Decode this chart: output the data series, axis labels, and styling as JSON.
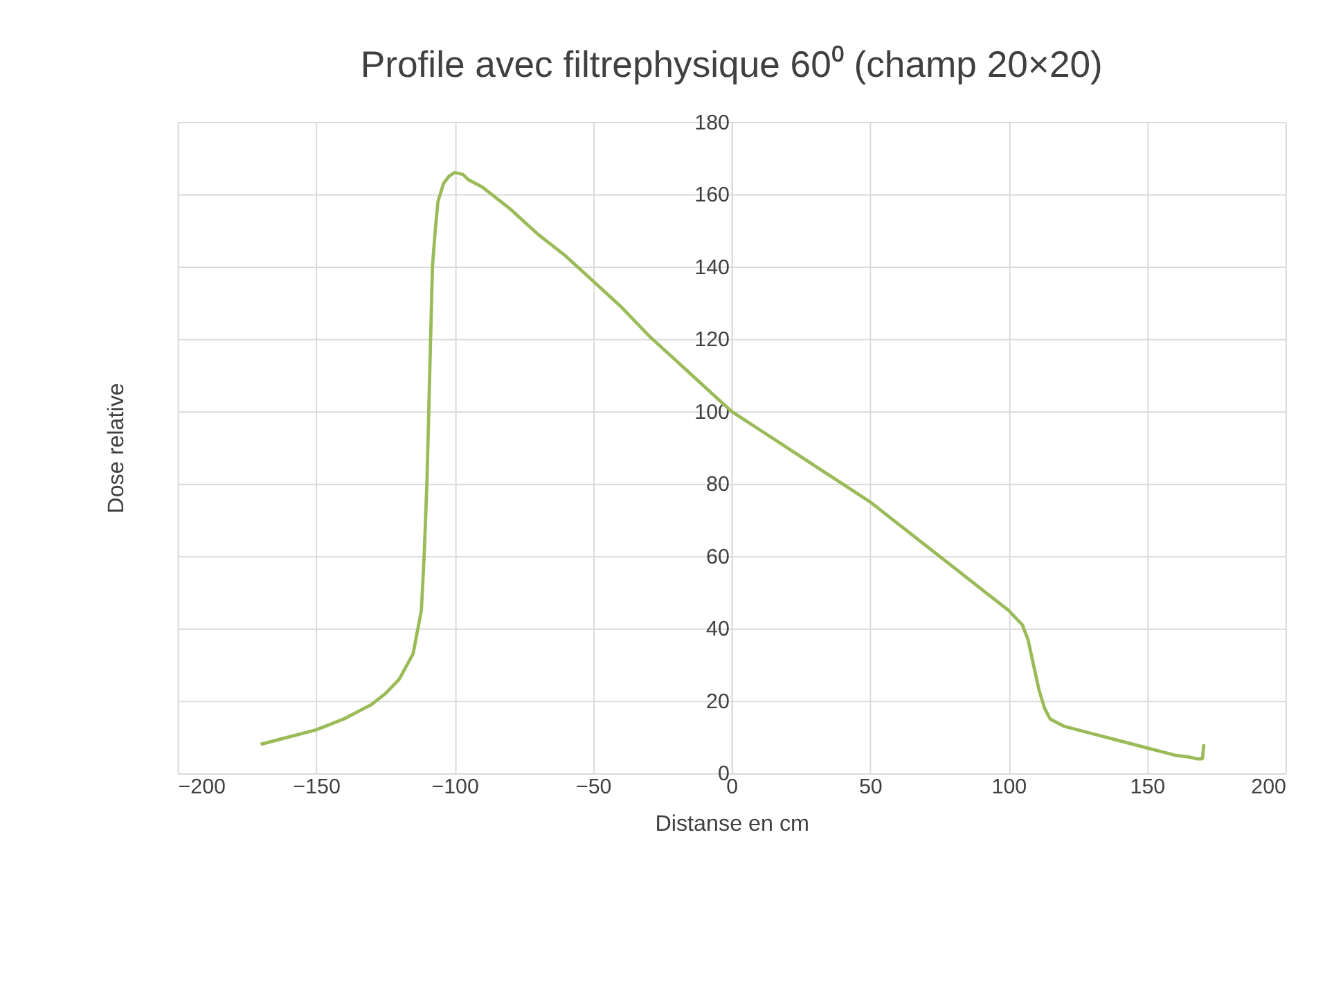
{
  "chart_data": {
    "type": "line",
    "title": "Profile avec filtrephysique 60⁰ (champ 20×20)",
    "xlabel": "Distanse en cm",
    "ylabel": "Dose relative",
    "x": [
      -170,
      -165,
      -160,
      -150,
      -140,
      -130,
      -125,
      -120,
      -115,
      -112,
      -111,
      -110,
      -109,
      -108,
      -107,
      -106,
      -104,
      -102,
      -100,
      -97,
      -95,
      -90,
      -80,
      -70,
      -60,
      -50,
      -40,
      -30,
      -20,
      -10,
      0,
      10,
      20,
      30,
      40,
      50,
      60,
      70,
      80,
      90,
      100,
      105,
      107,
      109,
      111,
      113,
      115,
      120,
      130,
      140,
      150,
      155,
      160,
      165,
      168,
      170,
      170.5
    ],
    "series": [
      {
        "color": "#9bbb59",
        "values": [
          8,
          9,
          10,
          12,
          15,
          19,
          22,
          26,
          33,
          45,
          60,
          80,
          110,
          140,
          150,
          158,
          163,
          165,
          166,
          165.5,
          164,
          162,
          156,
          149,
          143,
          136,
          129,
          121,
          114,
          107,
          100,
          95,
          90,
          85,
          80,
          75,
          69,
          63,
          57,
          51,
          45,
          41,
          37,
          30,
          23,
          18,
          15,
          13,
          11,
          9,
          7,
          6,
          5,
          4.5,
          4,
          4,
          8
        ]
      }
    ],
    "xlim": [
      -200,
      200
    ],
    "xticks": [
      -200,
      -150,
      -100,
      -50,
      0,
      50,
      100,
      150,
      200
    ],
    "ylim": [
      0,
      180
    ],
    "yticks": [
      0,
      20,
      40,
      60,
      80,
      100,
      120,
      140,
      160,
      180
    ],
    "grid": true,
    "legend": false,
    "marker": "none",
    "line_style": "solid"
  }
}
